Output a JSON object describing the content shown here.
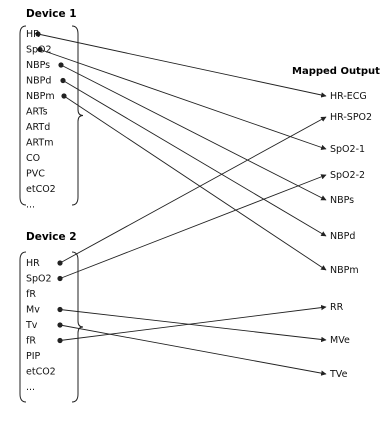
{
  "device1": {
    "title": "Device 1",
    "items": [
      "HR",
      "SpO2",
      "NBPs",
      "NBPd",
      "NBPm",
      "ARTs",
      "ARTd",
      "ARTm",
      "CO",
      "PVC",
      "etCO2",
      "..."
    ]
  },
  "device2": {
    "title": "Device 2",
    "items": [
      "HR",
      "SpO2",
      "fR",
      "Mv",
      "Tv",
      "fR",
      "PIP",
      "etCO2",
      "..."
    ]
  },
  "output": {
    "title": "Mapped Output",
    "items": [
      "HR-ECG",
      "HR-SPO2",
      "SpO2-1",
      "SpO2-2",
      "NBPs",
      "NBPd",
      "NBPm",
      "RR",
      "MVe",
      "TVe"
    ]
  },
  "mappings": [
    {
      "device": "device1",
      "item": 0,
      "output": 0
    },
    {
      "device": "device1",
      "item": 1,
      "output": 2
    },
    {
      "device": "device1",
      "item": 2,
      "output": 4
    },
    {
      "device": "device1",
      "item": 3,
      "output": 5
    },
    {
      "device": "device1",
      "item": 4,
      "output": 6
    },
    {
      "device": "device2",
      "item": 0,
      "output": 1
    },
    {
      "device": "device2",
      "item": 1,
      "output": 3
    },
    {
      "device": "device2",
      "item": 3,
      "output": 8
    },
    {
      "device": "device2",
      "item": 4,
      "output": 9
    },
    {
      "device": "device2",
      "item": 5,
      "output": 7
    }
  ],
  "colors": {
    "line": "#222222",
    "text": "#111111"
  }
}
